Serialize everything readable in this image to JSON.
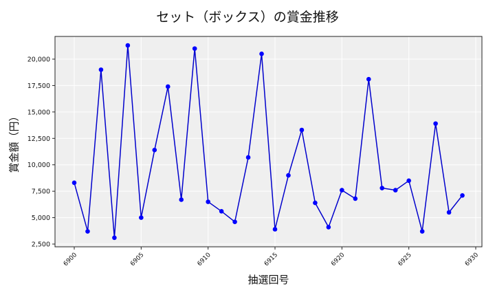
{
  "chart_data": {
    "type": "line",
    "title": "セット（ボックス）の賞金推移",
    "xlabel": "抽選回号",
    "ylabel": "賞金額（円）",
    "x": [
      6900,
      6901,
      6902,
      6903,
      6904,
      6905,
      6906,
      6907,
      6908,
      6909,
      6910,
      6911,
      6912,
      6913,
      6914,
      6915,
      6916,
      6917,
      6918,
      6919,
      6920,
      6921,
      6922,
      6923,
      6924,
      6925,
      6926,
      6927,
      6928,
      6929
    ],
    "values": [
      8300,
      3700,
      19000,
      3100,
      21300,
      5000,
      11400,
      17400,
      6700,
      21000,
      6500,
      5600,
      4600,
      10700,
      20500,
      3900,
      9000,
      13300,
      6400,
      4100,
      7600,
      6800,
      18100,
      7800,
      7600,
      8500,
      3700,
      13900,
      5500,
      7100
    ],
    "xticks": [
      6900,
      6905,
      6910,
      6915,
      6920,
      6925,
      6930
    ],
    "yticks": [
      2500,
      5000,
      7500,
      10000,
      12500,
      15000,
      17500,
      20000
    ],
    "ytick_labels": [
      "2,500",
      "5,000",
      "7,500",
      "10,000",
      "12,500",
      "15,000",
      "17,500",
      "20,000"
    ],
    "xlim": [
      6897.4,
      6930.5
    ],
    "ylim": [
      2100,
      22200
    ],
    "grid": true,
    "legend": null,
    "line_color": "#0000cc",
    "marker_color": "#0000ff",
    "plot_bg": "#efefef",
    "grid_color": "#ffffff"
  }
}
